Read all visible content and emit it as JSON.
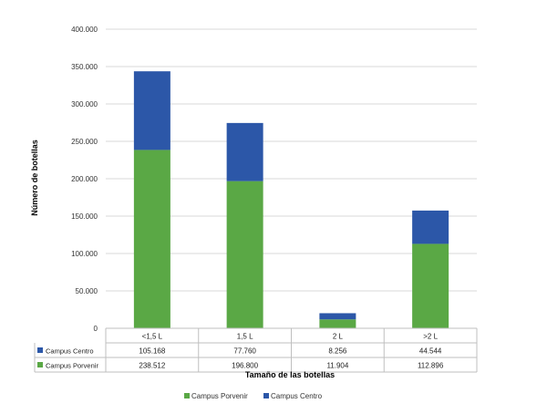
{
  "chart_data": {
    "type": "bar",
    "stacked": true,
    "categories": [
      "<1,5 L",
      "1,5 L",
      "2 L",
      ">2 L"
    ],
    "series": [
      {
        "name": "Campus Porvenir",
        "color": "#5aa845",
        "values": [
          238512,
          196800,
          11904,
          112896
        ],
        "labels": [
          "238.512",
          "196.800",
          "11.904",
          "112.896"
        ]
      },
      {
        "name": "Campus Centro",
        "color": "#2c57a8",
        "values": [
          105168,
          77760,
          8256,
          44544
        ],
        "labels": [
          "105.168",
          "77.760",
          "8.256",
          "44.544"
        ]
      }
    ],
    "table_order": [
      1,
      0
    ],
    "ylim": [
      0,
      400000
    ],
    "yticks": [
      0,
      50000,
      100000,
      150000,
      200000,
      250000,
      300000,
      350000,
      400000
    ],
    "ytick_labels": [
      "0",
      "50.000",
      "100.000",
      "150.000",
      "200.000",
      "250.000",
      "300.000",
      "350.000",
      "400.000"
    ],
    "xlabel": "Tamaño de las botellas",
    "ylabel": "Número de botellas",
    "grid": true,
    "legend_position": "bottom",
    "data_table": true
  }
}
